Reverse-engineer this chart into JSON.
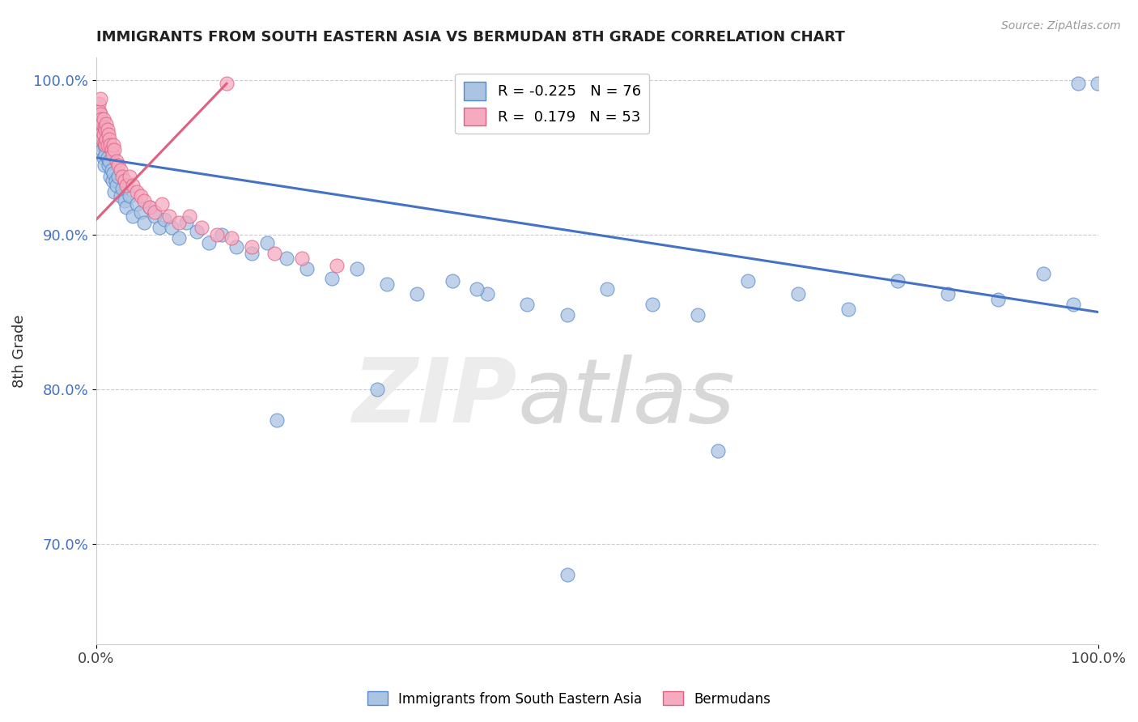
{
  "title": "IMMIGRANTS FROM SOUTH EASTERN ASIA VS BERMUDAN 8TH GRADE CORRELATION CHART",
  "source_text": "Source: ZipAtlas.com",
  "ylabel": "8th Grade",
  "xlim": [
    0.0,
    1.0
  ],
  "ylim": [
    0.635,
    1.015
  ],
  "yticks": [
    0.7,
    0.8,
    0.9,
    1.0
  ],
  "ytick_labels": [
    "70.0%",
    "80.0%",
    "90.0%",
    "100.0%"
  ],
  "xticks": [
    0.0,
    1.0
  ],
  "xtick_labels": [
    "0.0%",
    "100.0%"
  ],
  "legend_R1": "-0.225",
  "legend_N1": "76",
  "legend_R2": "0.179",
  "legend_N2": "53",
  "blue_color": "#aac4e2",
  "blue_edge_color": "#5588cc",
  "blue_line_color": "#4472c4",
  "pink_color": "#f5aac0",
  "pink_edge_color": "#e06080",
  "pink_line_color": "#e06080",
  "blue_trend_x0": 0.0,
  "blue_trend_y0": 0.95,
  "blue_trend_x1": 1.0,
  "blue_trend_y1": 0.85,
  "pink_trend_x0": 0.0,
  "pink_trend_y0": 0.91,
  "pink_trend_x1": 0.13,
  "pink_trend_y1": 0.998,
  "blue_x": [
    0.002,
    0.003,
    0.003,
    0.004,
    0.004,
    0.005,
    0.005,
    0.006,
    0.006,
    0.007,
    0.007,
    0.008,
    0.008,
    0.009,
    0.01,
    0.011,
    0.012,
    0.013,
    0.014,
    0.015,
    0.016,
    0.017,
    0.018,
    0.019,
    0.02,
    0.022,
    0.024,
    0.026,
    0.028,
    0.03,
    0.033,
    0.036,
    0.04,
    0.044,
    0.048,
    0.053,
    0.058,
    0.063,
    0.068,
    0.075,
    0.082,
    0.09,
    0.1,
    0.112,
    0.125,
    0.14,
    0.155,
    0.17,
    0.19,
    0.21,
    0.235,
    0.26,
    0.29,
    0.32,
    0.355,
    0.39,
    0.43,
    0.47,
    0.51,
    0.555,
    0.6,
    0.65,
    0.7,
    0.75,
    0.8,
    0.85,
    0.9,
    0.945,
    0.975,
    0.62,
    0.38,
    0.28,
    0.18,
    0.98,
    0.47,
    0.999
  ],
  "blue_y": [
    0.97,
    0.975,
    0.965,
    0.968,
    0.96,
    0.972,
    0.958,
    0.966,
    0.955,
    0.962,
    0.95,
    0.958,
    0.945,
    0.952,
    0.96,
    0.95,
    0.945,
    0.948,
    0.938,
    0.942,
    0.935,
    0.94,
    0.928,
    0.935,
    0.932,
    0.938,
    0.925,
    0.93,
    0.922,
    0.918,
    0.925,
    0.912,
    0.92,
    0.915,
    0.908,
    0.918,
    0.912,
    0.905,
    0.91,
    0.905,
    0.898,
    0.908,
    0.902,
    0.895,
    0.9,
    0.892,
    0.888,
    0.895,
    0.885,
    0.878,
    0.872,
    0.878,
    0.868,
    0.862,
    0.87,
    0.862,
    0.855,
    0.848,
    0.865,
    0.855,
    0.848,
    0.87,
    0.862,
    0.852,
    0.87,
    0.862,
    0.858,
    0.875,
    0.855,
    0.76,
    0.865,
    0.8,
    0.78,
    0.998,
    0.68,
    0.998
  ],
  "pink_x": [
    0.001,
    0.002,
    0.002,
    0.003,
    0.003,
    0.004,
    0.004,
    0.005,
    0.005,
    0.006,
    0.006,
    0.007,
    0.007,
    0.008,
    0.008,
    0.009,
    0.009,
    0.01,
    0.01,
    0.011,
    0.011,
    0.012,
    0.013,
    0.014,
    0.015,
    0.016,
    0.017,
    0.018,
    0.02,
    0.022,
    0.024,
    0.026,
    0.028,
    0.03,
    0.033,
    0.036,
    0.04,
    0.044,
    0.048,
    0.053,
    0.058,
    0.065,
    0.073,
    0.082,
    0.093,
    0.105,
    0.12,
    0.135,
    0.155,
    0.178,
    0.205,
    0.24,
    0.13
  ],
  "pink_y": [
    0.978,
    0.985,
    0.975,
    0.98,
    0.97,
    0.988,
    0.978,
    0.975,
    0.965,
    0.972,
    0.962,
    0.975,
    0.965,
    0.97,
    0.96,
    0.968,
    0.958,
    0.972,
    0.962,
    0.968,
    0.958,
    0.965,
    0.962,
    0.958,
    0.955,
    0.952,
    0.958,
    0.955,
    0.948,
    0.945,
    0.942,
    0.938,
    0.935,
    0.932,
    0.938,
    0.932,
    0.928,
    0.925,
    0.922,
    0.918,
    0.915,
    0.92,
    0.912,
    0.908,
    0.912,
    0.905,
    0.9,
    0.898,
    0.892,
    0.888,
    0.885,
    0.88,
    0.998
  ]
}
